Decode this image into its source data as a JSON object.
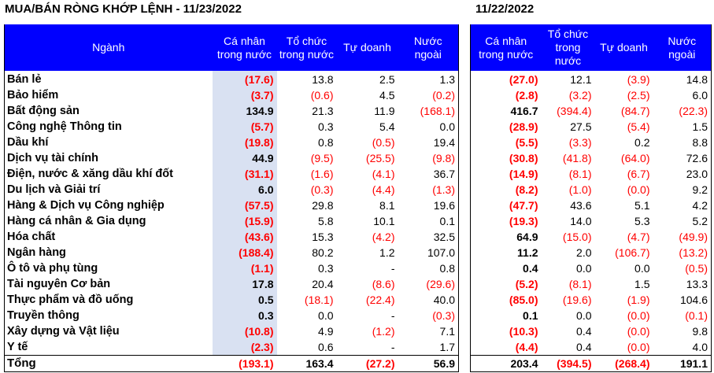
{
  "title_left": "MUA/BÁN RÒNG KHỚP LỆNH - 11/23/2022",
  "title_right": "11/22/2022",
  "headers_left": [
    "Ngành",
    "Cá nhân trong nước",
    "Tổ chức trong nước",
    "Tự doanh",
    "Nước ngoài"
  ],
  "headers_right": [
    "Cá nhân trong nước",
    "Tổ chức trong nước",
    "Tự doanh",
    "Nước ngoài"
  ],
  "rows": [
    {
      "sector": "Bán lẻ",
      "d1": [
        "(17.6)",
        "13.8",
        "2.5",
        "1.3"
      ],
      "d2": [
        "(27.0)",
        "12.1",
        "(3.9)",
        "14.8"
      ]
    },
    {
      "sector": "Bảo hiểm",
      "d1": [
        "(3.7)",
        "(0.6)",
        "4.5",
        "(0.2)"
      ],
      "d2": [
        "(2.8)",
        "(3.2)",
        "(2.5)",
        "6.0"
      ]
    },
    {
      "sector": "Bất động sản",
      "d1": [
        "134.9",
        "21.3",
        "11.9",
        "(168.1)"
      ],
      "d2": [
        "416.7",
        "(394.4)",
        "(84.7)",
        "(22.3)"
      ]
    },
    {
      "sector": "Công nghệ Thông tin",
      "d1": [
        "(5.7)",
        "0.3",
        "5.4",
        "0.0"
      ],
      "d2": [
        "(28.9)",
        "27.5",
        "(5.4)",
        "1.5"
      ]
    },
    {
      "sector": "Dầu khí",
      "d1": [
        "(19.8)",
        "0.8",
        "(0.5)",
        "19.4"
      ],
      "d2": [
        "(5.5)",
        "(3.3)",
        "0.2",
        "8.8"
      ]
    },
    {
      "sector": "Dịch vụ tài chính",
      "d1": [
        "44.9",
        "(9.5)",
        "(25.5)",
        "(9.8)"
      ],
      "d2": [
        "(30.8)",
        "(41.8)",
        "(64.0)",
        "72.6"
      ]
    },
    {
      "sector": "Điện, nước & xăng dầu khí đốt",
      "d1": [
        "(31.1)",
        "(1.6)",
        "(4.1)",
        "36.7"
      ],
      "d2": [
        "(14.9)",
        "(8.1)",
        "(6.7)",
        "23.0"
      ]
    },
    {
      "sector": "Du lịch và Giải trí",
      "d1": [
        "6.0",
        "(0.3)",
        "(4.4)",
        "(1.3)"
      ],
      "d2": [
        "(8.2)",
        "(1.0)",
        "(0.0)",
        "9.2"
      ]
    },
    {
      "sector": "Hàng & Dịch vụ Công nghiệp",
      "d1": [
        "(57.5)",
        "29.8",
        "8.1",
        "19.6"
      ],
      "d2": [
        "(47.7)",
        "43.6",
        "5.1",
        "4.2"
      ]
    },
    {
      "sector": "Hàng cá nhân & Gia dụng",
      "d1": [
        "(15.9)",
        "5.8",
        "10.1",
        "0.1"
      ],
      "d2": [
        "(19.3)",
        "14.0",
        "5.3",
        "5.2"
      ]
    },
    {
      "sector": "Hóa chất",
      "d1": [
        "(43.6)",
        "15.3",
        "(4.2)",
        "32.5"
      ],
      "d2": [
        "64.9",
        "(15.0)",
        "(4.7)",
        "(49.9)"
      ]
    },
    {
      "sector": "Ngân hàng",
      "d1": [
        "(188.4)",
        "80.2",
        "1.2",
        "107.0"
      ],
      "d2": [
        "11.2",
        "2.0",
        "(106.7)",
        "(13.2)"
      ]
    },
    {
      "sector": "Ô tô và phụ tùng",
      "d1": [
        "(1.1)",
        "0.3",
        "-",
        "0.8"
      ],
      "d2": [
        "0.4",
        "0.0",
        "0.0",
        "(0.5)"
      ]
    },
    {
      "sector": "Tài nguyên Cơ bản",
      "d1": [
        "17.8",
        "20.4",
        "(8.6)",
        "(29.6)"
      ],
      "d2": [
        "(5.2)",
        "(8.1)",
        "1.5",
        "13.3"
      ]
    },
    {
      "sector": "Thực phẩm và đồ uống",
      "d1": [
        "0.5",
        "(18.1)",
        "(22.4)",
        "40.0"
      ],
      "d2": [
        "(85.0)",
        "(19.6)",
        "(1.9)",
        "104.6"
      ]
    },
    {
      "sector": "Truyền thông",
      "d1": [
        "0.3",
        "0.0",
        "-",
        "(0.3)"
      ],
      "d2": [
        "0.1",
        "0.0",
        "(0.0)",
        "(0.1)"
      ]
    },
    {
      "sector": "Xây dựng và Vật liệu",
      "d1": [
        "(10.8)",
        "4.9",
        "(1.2)",
        "7.1"
      ],
      "d2": [
        "(10.3)",
        "0.4",
        "(0.0)",
        "9.8"
      ]
    },
    {
      "sector": "Y tế",
      "d1": [
        "(2.3)",
        "0.6",
        "-",
        "1.7"
      ],
      "d2": [
        "(4.4)",
        "0.4",
        "(0.0)",
        "4.0"
      ]
    }
  ],
  "total": {
    "sector": "Tổng",
    "d1": [
      "(193.1)",
      "163.4",
      "(27.2)",
      "56.9"
    ],
    "d2": [
      "203.4",
      "(394.5)",
      "(268.4)",
      "191.1"
    ]
  },
  "colors": {
    "header_bg": "#0000ff",
    "header_text": "#ffffff",
    "negative": "#ff0000",
    "highlight": "#d9e1f2"
  }
}
